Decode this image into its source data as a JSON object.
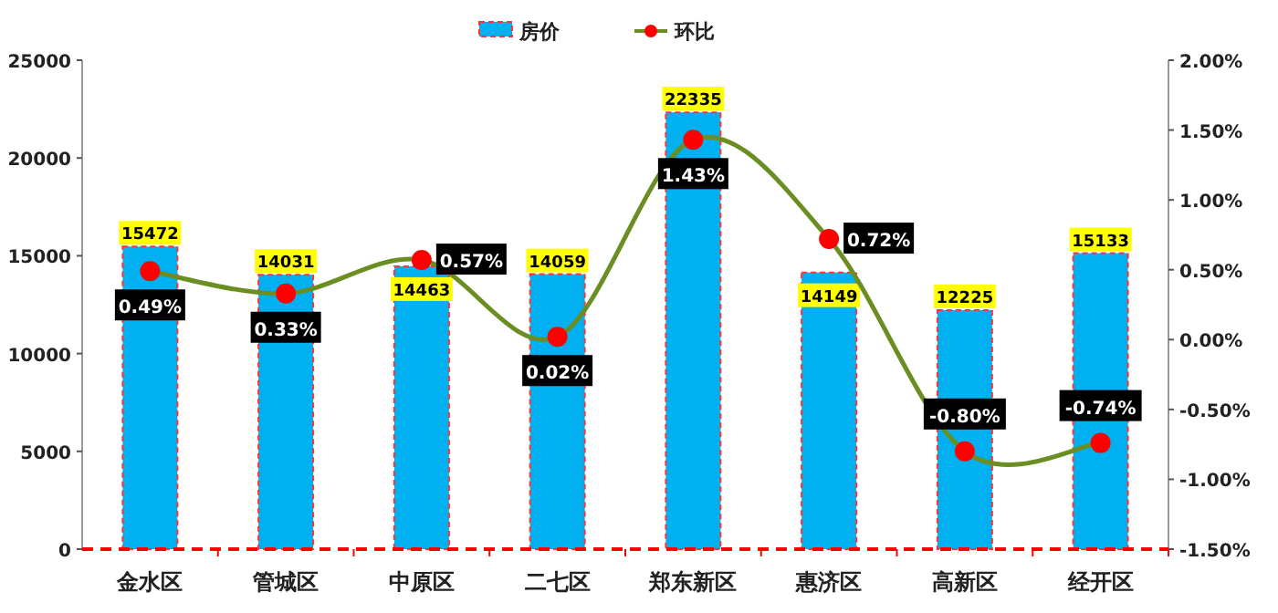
{
  "chart_data": {
    "type": "bar",
    "categories": [
      "金水区",
      "管城区",
      "中原区",
      "二七区",
      "郑东新区",
      "惠济区",
      "高新区",
      "经开区"
    ],
    "series": [
      {
        "name": "房价",
        "color": "#00b0f0",
        "values": [
          15472,
          14031,
          14463,
          14059,
          22335,
          14149,
          12225,
          15133
        ],
        "value_labels": [
          "15472",
          "14031",
          "14463",
          "14059",
          "22335",
          "14149",
          "12225",
          "15133"
        ]
      },
      {
        "name": "环比",
        "type": "line",
        "axis": "y2",
        "color": "#6b8e23",
        "colors": [
          "#ff0000",
          "#ff0000",
          "#ff0000",
          "#ff0000",
          "#ff0000",
          "#ff0000",
          "#ff0000",
          "#ff0000"
        ],
        "marker": "circle",
        "values": [
          0.49,
          0.33,
          0.57,
          0.02,
          1.43,
          0.72,
          -0.8,
          -0.74
        ],
        "value_labels": [
          "0.49%",
          "0.33%",
          "0.57%",
          "0.02%",
          "1.43%",
          "0.72%",
          "-0.80%",
          "-0.74%"
        ]
      }
    ],
    "ylim": [
      0,
      25000
    ],
    "yticks": [
      0,
      5000,
      10000,
      15000,
      20000,
      25000
    ],
    "y2lim": [
      -1.5,
      2
    ],
    "y2ticks": [
      {
        "value": -1.5,
        "label": "-1.50%"
      },
      {
        "value": -1,
        "label": "-1.00%"
      },
      {
        "value": -0.5,
        "label": "-0.50%"
      },
      {
        "value": 0,
        "label": "0.00%"
      },
      {
        "value": 0.5,
        "label": "0.50%"
      },
      {
        "value": 1,
        "label": "1.00%"
      },
      {
        "value": 1.5,
        "label": "1.50%"
      },
      {
        "value": 2,
        "label": "2.00%"
      }
    ],
    "legend": "top"
  }
}
